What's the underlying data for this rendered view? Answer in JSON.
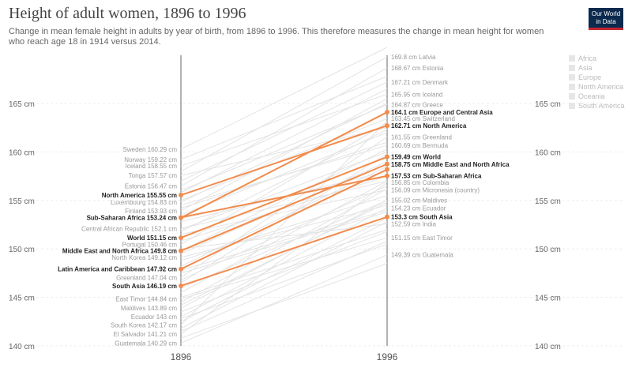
{
  "header": {
    "title": "Height of adult women, 1896 to 1996",
    "subtitle": "Change in mean female height in adults by year of birth, from 1896 to 1996. This therefore measures the change in mean height for women who reach age 18 in 1914 versus 2014.",
    "logo_line1": "Our World",
    "logo_line2": "in Data"
  },
  "legend": [
    "Africa",
    "Asia",
    "Europe",
    "North America",
    "Oceania",
    "South America"
  ],
  "colors": {
    "highlight": "#f28b4b",
    "background_line": "#e3e3e3",
    "axis": "#666666",
    "logo": "#0b2a4d"
  },
  "chart_data": {
    "type": "slope",
    "x": [
      "1896",
      "1996"
    ],
    "ylim": [
      140,
      169.8
    ],
    "y_ticks": [
      140,
      145,
      150,
      155,
      160,
      165
    ],
    "y_tick_labels": [
      "140 cm",
      "145 cm",
      "150 cm",
      "155 cm",
      "160 cm",
      "165 cm"
    ],
    "highlighted": [
      {
        "name": "Europe and Central Asia",
        "start": 153.2,
        "end": 164.1,
        "start_label": "",
        "end_label": "164.1 cm"
      },
      {
        "name": "North America",
        "start": 155.55,
        "end": 162.71,
        "start_label": "155.55 cm",
        "end_label": "162.71 cm"
      },
      {
        "name": "World",
        "start": 151.15,
        "end": 159.49,
        "start_label": "151.15 cm",
        "end_label": "159.49 cm"
      },
      {
        "name": "Middle East and North Africa",
        "start": 149.8,
        "end": 158.75,
        "start_label": "149.8 cm",
        "end_label": "158.75 cm"
      },
      {
        "name": "Sub-Saharan Africa",
        "start": 153.24,
        "end": 157.53,
        "start_label": "153.24 cm",
        "end_label": "157.53 cm"
      },
      {
        "name": "Latin America and Caribbean",
        "start": 147.92,
        "end": 158.2,
        "start_label": "147.92 cm",
        "end_label": ""
      },
      {
        "name": "South Asia",
        "start": 146.19,
        "end": 153.3,
        "start_label": "146.19 cm",
        "end_label": "153.3 cm"
      }
    ],
    "start_labels": [
      {
        "name": "Sweden",
        "value": "160.29 cm",
        "y": 160.29
      },
      {
        "name": "Norway",
        "value": "159.22 cm",
        "y": 159.22
      },
      {
        "name": "Iceland",
        "value": "158.55 cm",
        "y": 158.55
      },
      {
        "name": "Tonga",
        "value": "157.57 cm",
        "y": 157.57
      },
      {
        "name": "Estonia",
        "value": "156.47 cm",
        "y": 156.47
      },
      {
        "name": "Luxembourg",
        "value": "154.83 cm",
        "y": 154.83
      },
      {
        "name": "Finland",
        "value": "153.93 cm",
        "y": 153.93
      },
      {
        "name": "Central African Republic",
        "value": "152.1 cm",
        "y": 152.1
      },
      {
        "name": "Portugal",
        "value": "150.46 cm",
        "y": 150.46
      },
      {
        "name": "North Korea",
        "value": "149.12 cm",
        "y": 149.12
      },
      {
        "name": "Greenland",
        "value": "147.04 cm",
        "y": 147.04
      },
      {
        "name": "East Timor",
        "value": "144.84 cm",
        "y": 144.84
      },
      {
        "name": "Maldives",
        "value": "143.89 cm",
        "y": 143.89
      },
      {
        "name": "Ecuador",
        "value": "143 cm",
        "y": 143
      },
      {
        "name": "South Korea",
        "value": "142.17 cm",
        "y": 142.17
      },
      {
        "name": "El Salvador",
        "value": "141.21 cm",
        "y": 141.21
      },
      {
        "name": "Guatemala",
        "value": "140.29 cm",
        "y": 140.29
      }
    ],
    "end_labels": [
      {
        "name": "Latvia",
        "value": "169.8 cm",
        "y": 169.8
      },
      {
        "name": "Estonia",
        "value": "168.67 cm",
        "y": 168.67
      },
      {
        "name": "Denmark",
        "value": "167.21 cm",
        "y": 167.21
      },
      {
        "name": "Iceland",
        "value": "165.95 cm",
        "y": 165.95
      },
      {
        "name": "Greece",
        "value": "164.87 cm",
        "y": 164.87
      },
      {
        "name": "Switzerland",
        "value": "163.45 cm",
        "y": 163.45
      },
      {
        "name": "Greenland",
        "value": "161.55 cm",
        "y": 161.55
      },
      {
        "name": "Bermuda",
        "value": "160.69 cm",
        "y": 160.69
      },
      {
        "name": "Colombia",
        "value": "156.85 cm",
        "y": 156.85
      },
      {
        "name": "Micronesia (country)",
        "value": "156.09 cm",
        "y": 156.09
      },
      {
        "name": "Maldives",
        "value": "155.02 cm",
        "y": 155.02
      },
      {
        "name": "Ecuador",
        "value": "154.23 cm",
        "y": 154.23
      },
      {
        "name": "India",
        "value": "152.59 cm",
        "y": 152.59
      },
      {
        "name": "East Timor",
        "value": "151.15 cm",
        "y": 151.15
      },
      {
        "name": "Guatemala",
        "value": "149.39 cm",
        "y": 149.39
      }
    ],
    "background_lines": [
      {
        "start": 160.29,
        "end": 172.0
      },
      {
        "start": 159.22,
        "end": 167.8
      },
      {
        "start": 158.55,
        "end": 165.95
      },
      {
        "start": 157.57,
        "end": 162.5
      },
      {
        "start": 156.47,
        "end": 168.67
      },
      {
        "start": 154.83,
        "end": 165.0
      },
      {
        "start": 153.93,
        "end": 165.5
      },
      {
        "start": 152.1,
        "end": 157.0
      },
      {
        "start": 150.46,
        "end": 163.0
      },
      {
        "start": 149.12,
        "end": 154.5
      },
      {
        "start": 147.04,
        "end": 161.55
      },
      {
        "start": 144.84,
        "end": 151.15
      },
      {
        "start": 143.89,
        "end": 155.02
      },
      {
        "start": 143,
        "end": 154.23
      },
      {
        "start": 142.17,
        "end": 163.2
      },
      {
        "start": 141.21,
        "end": 156.85
      },
      {
        "start": 140.29,
        "end": 149.39
      },
      {
        "start": 158.0,
        "end": 169.8
      },
      {
        "start": 157.0,
        "end": 167.21
      },
      {
        "start": 156.0,
        "end": 164.87
      },
      {
        "start": 155.0,
        "end": 163.45
      },
      {
        "start": 154.5,
        "end": 160.69
      },
      {
        "start": 153.5,
        "end": 162.0
      },
      {
        "start": 152.8,
        "end": 158.0
      },
      {
        "start": 152.0,
        "end": 160.0
      },
      {
        "start": 151.5,
        "end": 156.09
      },
      {
        "start": 150.8,
        "end": 157.5
      },
      {
        "start": 150.0,
        "end": 152.59
      },
      {
        "start": 149.5,
        "end": 159.0
      },
      {
        "start": 148.8,
        "end": 155.5
      },
      {
        "start": 148.2,
        "end": 158.5
      },
      {
        "start": 147.5,
        "end": 153.8
      },
      {
        "start": 146.8,
        "end": 156.5
      },
      {
        "start": 146.0,
        "end": 155.0
      },
      {
        "start": 145.5,
        "end": 157.0
      },
      {
        "start": 145.0,
        "end": 152.0
      },
      {
        "start": 144.2,
        "end": 154.8
      },
      {
        "start": 143.5,
        "end": 151.8
      },
      {
        "start": 142.8,
        "end": 150.5
      },
      {
        "start": 141.8,
        "end": 152.8
      },
      {
        "start": 140.8,
        "end": 148.5
      },
      {
        "start": 155.8,
        "end": 166.5
      },
      {
        "start": 154.2,
        "end": 161.0
      },
      {
        "start": 151.8,
        "end": 162.3
      },
      {
        "start": 149.8,
        "end": 160.3
      },
      {
        "start": 147.8,
        "end": 154.0
      },
      {
        "start": 146.5,
        "end": 159.8
      },
      {
        "start": 144.5,
        "end": 156.2
      },
      {
        "start": 142.5,
        "end": 153.2
      },
      {
        "start": 141.5,
        "end": 150.8
      }
    ]
  }
}
